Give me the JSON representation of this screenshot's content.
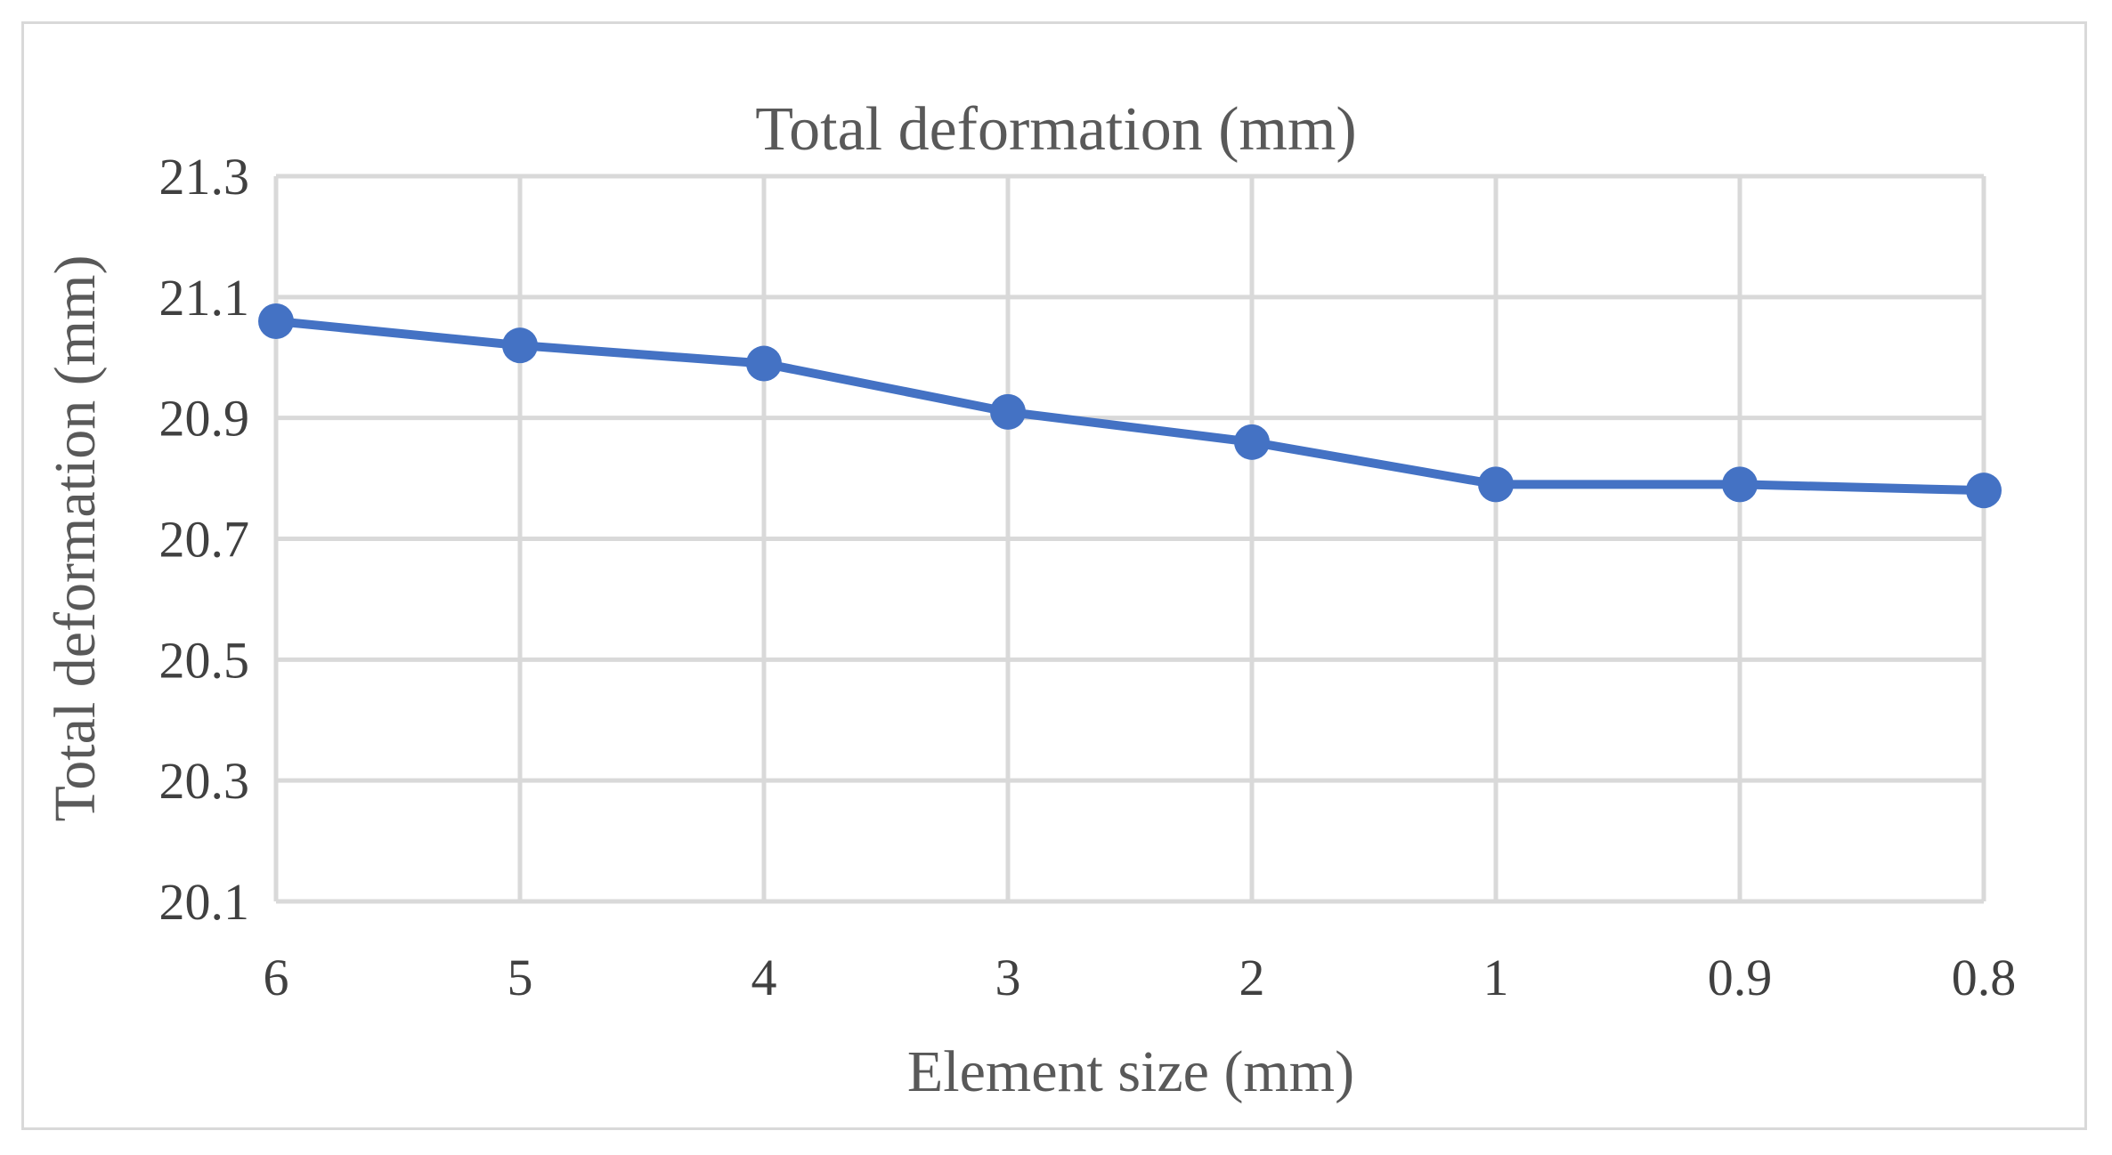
{
  "chart_data": {
    "type": "line",
    "title": "Total deformation (mm)",
    "xlabel": "Element size (mm)",
    "ylabel": "Total deformation (mm)",
    "categories": [
      "6",
      "5",
      "4",
      "3",
      "2",
      "1",
      "0.9",
      "0.8"
    ],
    "series": [
      {
        "values": [
          21.06,
          21.02,
          20.99,
          20.91,
          20.86,
          20.79,
          20.79,
          20.78
        ],
        "color": "#4472c4"
      }
    ],
    "ylim": [
      20.1,
      21.3
    ],
    "yticks": [
      "20.1",
      "20.3",
      "20.5",
      "20.7",
      "20.9",
      "21.1",
      "21.3"
    ],
    "grid": true,
    "legend": "none"
  }
}
